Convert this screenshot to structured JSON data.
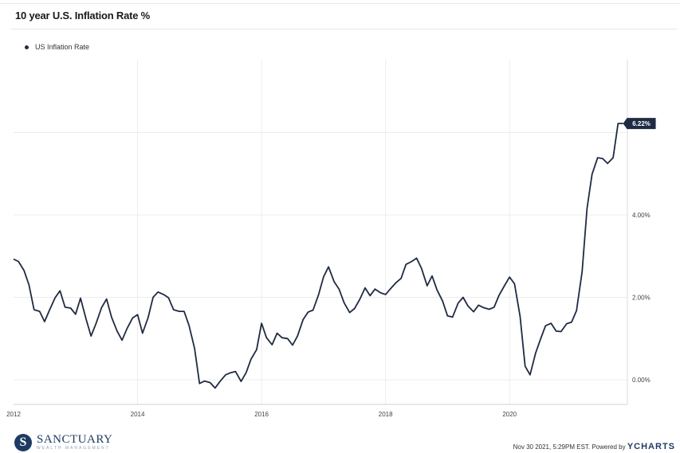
{
  "header": {
    "title": "10 year U.S. Inflation Rate %"
  },
  "footer": {
    "logo_name": "SANCTUARY",
    "logo_sub": "WEALTH MANAGEMENT",
    "timestamp": "Nov 30 2021, 5:29PM EST. Powered by",
    "brand": "YCHARTS"
  },
  "colors": {
    "line": "#1f2b43",
    "grid": "#ececec",
    "last_label_bg": "#1f2b43"
  },
  "chart_data": {
    "type": "line",
    "title": "10 year U.S. Inflation Rate %",
    "xlabel": "",
    "ylabel": "",
    "x_ticks": [
      "2012",
      "2014",
      "2016",
      "2018",
      "2020"
    ],
    "y_ticks": [
      "0.00%",
      "2.00%",
      "4.00%"
    ],
    "ylim": [
      -0.5,
      7.6
    ],
    "xlim": [
      2012.0,
      2021.9
    ],
    "grid": true,
    "legend": "top-left",
    "last_value_label": "6.22%",
    "series": [
      {
        "name": "US Inflation Rate",
        "x": [
          2012.0,
          2012.08,
          2012.17,
          2012.25,
          2012.33,
          2012.42,
          2012.5,
          2012.58,
          2012.67,
          2012.75,
          2012.83,
          2012.92,
          2013.0,
          2013.08,
          2013.17,
          2013.25,
          2013.33,
          2013.42,
          2013.5,
          2013.58,
          2013.67,
          2013.75,
          2013.83,
          2013.92,
          2014.0,
          2014.08,
          2014.17,
          2014.25,
          2014.33,
          2014.42,
          2014.5,
          2014.58,
          2014.67,
          2014.75,
          2014.83,
          2014.92,
          2015.0,
          2015.08,
          2015.17,
          2015.25,
          2015.33,
          2015.42,
          2015.5,
          2015.58,
          2015.67,
          2015.75,
          2015.83,
          2015.92,
          2016.0,
          2016.08,
          2016.17,
          2016.25,
          2016.33,
          2016.42,
          2016.5,
          2016.58,
          2016.67,
          2016.75,
          2016.83,
          2016.92,
          2017.0,
          2017.08,
          2017.17,
          2017.25,
          2017.33,
          2017.42,
          2017.5,
          2017.58,
          2017.67,
          2017.75,
          2017.83,
          2017.92,
          2018.0,
          2018.08,
          2018.17,
          2018.25,
          2018.33,
          2018.42,
          2018.5,
          2018.58,
          2018.67,
          2018.75,
          2018.83,
          2018.92,
          2019.0,
          2019.08,
          2019.17,
          2019.25,
          2019.33,
          2019.42,
          2019.5,
          2019.58,
          2019.67,
          2019.75,
          2019.83,
          2019.92,
          2020.0,
          2020.08,
          2020.17,
          2020.25,
          2020.33,
          2020.42,
          2020.5,
          2020.58,
          2020.67,
          2020.75,
          2020.83,
          2020.92,
          2021.0,
          2021.08,
          2021.17,
          2021.25,
          2021.33,
          2021.42,
          2021.5,
          2021.58,
          2021.67,
          2021.75,
          2021.83
        ],
        "values": [
          2.93,
          2.87,
          2.65,
          2.3,
          1.7,
          1.66,
          1.41,
          1.69,
          1.99,
          2.16,
          1.76,
          1.74,
          1.59,
          1.98,
          1.47,
          1.06,
          1.36,
          1.75,
          1.96,
          1.52,
          1.18,
          0.96,
          1.24,
          1.5,
          1.58,
          1.13,
          1.51,
          2.0,
          2.13,
          2.07,
          1.99,
          1.7,
          1.66,
          1.66,
          1.32,
          0.76,
          -0.09,
          -0.03,
          -0.07,
          -0.2,
          -0.04,
          0.12,
          0.17,
          0.2,
          -0.04,
          0.17,
          0.5,
          0.73,
          1.37,
          1.02,
          0.85,
          1.13,
          1.02,
          1.0,
          0.84,
          1.06,
          1.46,
          1.64,
          1.69,
          2.07,
          2.5,
          2.74,
          2.38,
          2.2,
          1.87,
          1.63,
          1.73,
          1.94,
          2.23,
          2.04,
          2.2,
          2.11,
          2.07,
          2.21,
          2.36,
          2.46,
          2.8,
          2.87,
          2.95,
          2.7,
          2.28,
          2.52,
          2.18,
          1.91,
          1.55,
          1.52,
          1.86,
          2.0,
          1.79,
          1.65,
          1.81,
          1.75,
          1.71,
          1.76,
          2.05,
          2.29,
          2.49,
          2.33,
          1.54,
          0.33,
          0.12,
          0.65,
          0.99,
          1.31,
          1.37,
          1.18,
          1.17,
          1.36,
          1.4,
          1.68,
          2.62,
          4.16,
          4.99,
          5.39,
          5.37,
          5.25,
          5.39,
          6.22,
          6.22
        ]
      }
    ]
  }
}
